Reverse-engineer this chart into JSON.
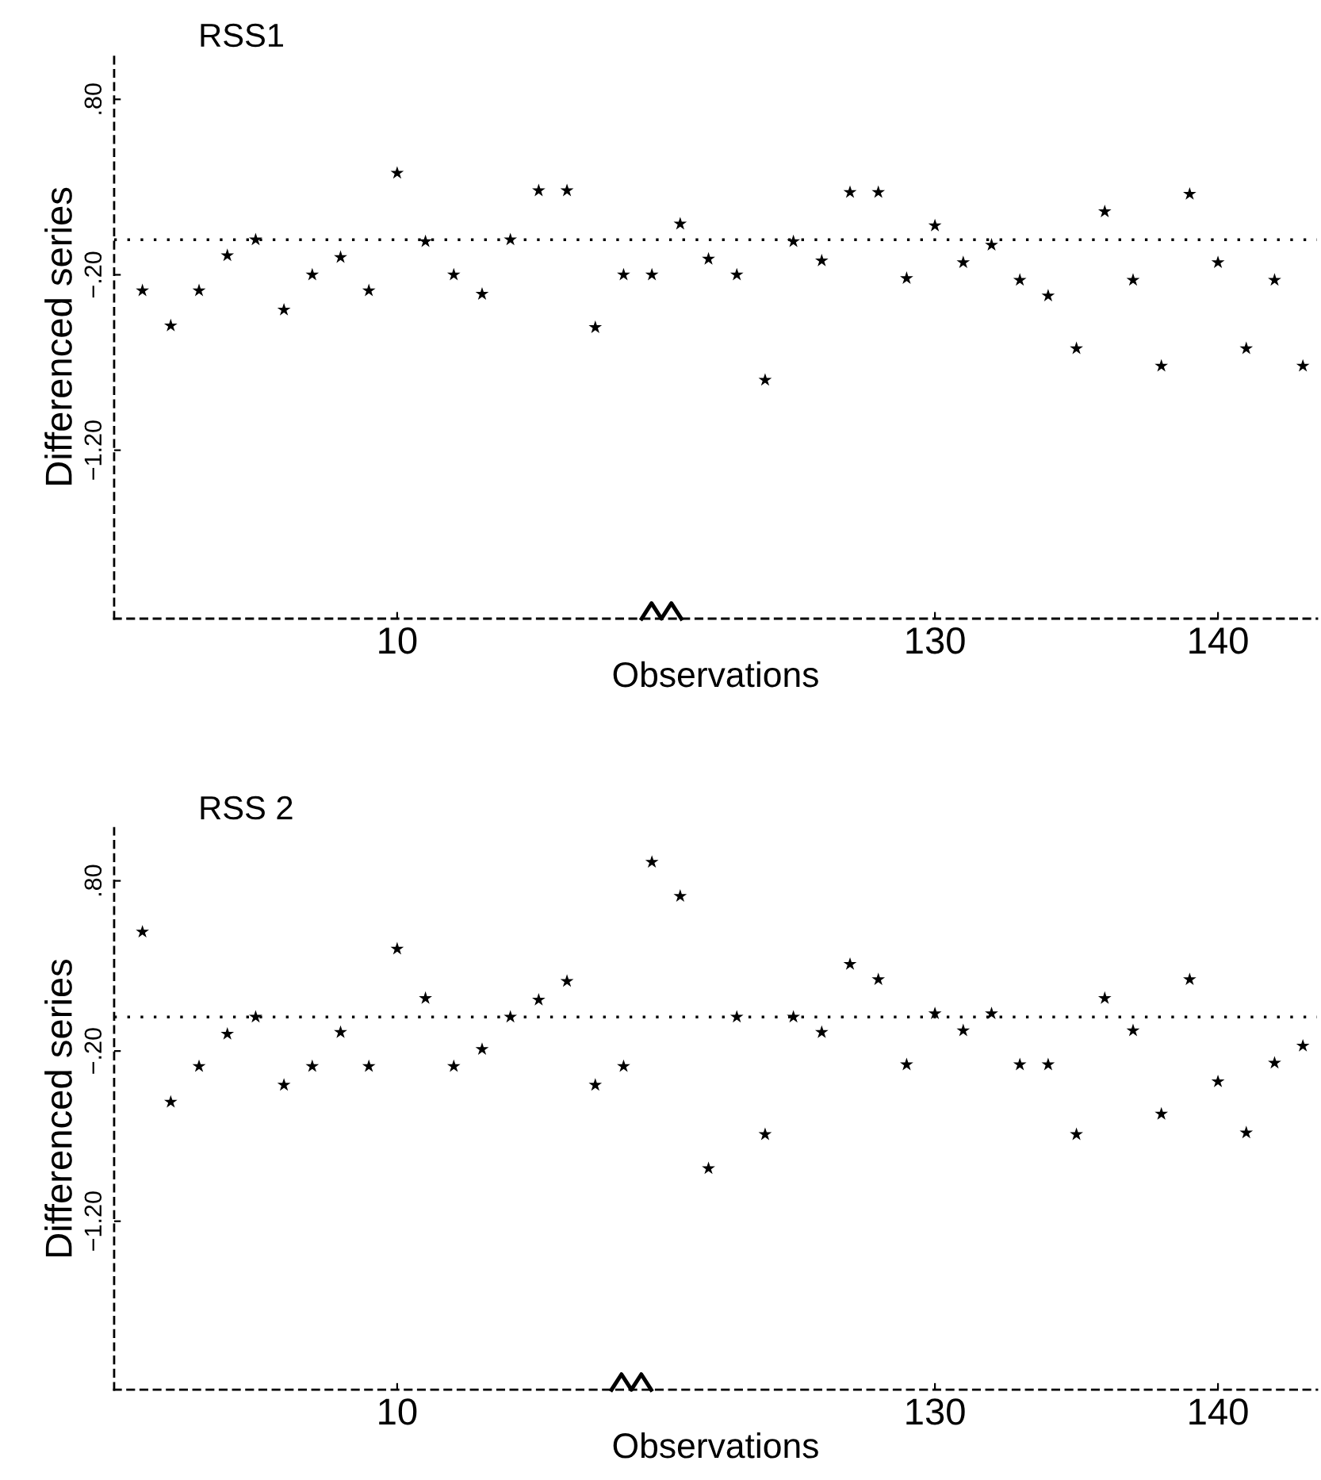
{
  "chart_data": [
    {
      "type": "scatter",
      "title": "RSS1",
      "xlabel": "Observations",
      "ylabel": "Differenced series",
      "categories": [
        null,
        null,
        null,
        null,
        null,
        null,
        null,
        null,
        null,
        "10",
        null,
        null,
        null,
        null,
        null,
        null,
        null,
        null,
        null,
        null,
        null,
        null,
        null,
        null,
        null,
        null,
        null,
        null,
        "130",
        null,
        null,
        null,
        null,
        null,
        null,
        null,
        null,
        null,
        "140",
        null,
        null,
        null
      ],
      "series": [
        {
          "color": "#000000",
          "values": [
            -0.29,
            -0.49,
            -0.29,
            -0.09,
            0.0,
            -0.4,
            -0.2,
            -0.1,
            -0.29,
            0.38,
            -0.01,
            -0.2,
            -0.31,
            0.0,
            0.28,
            0.28,
            -0.5,
            -0.2,
            -0.2,
            0.09,
            -0.11,
            -0.2,
            -0.8,
            -0.01,
            -0.12,
            0.27,
            0.27,
            -0.22,
            0.08,
            -0.13,
            -0.03,
            -0.23,
            -0.32,
            -0.62,
            0.16,
            -0.23,
            -0.72,
            0.26,
            -0.13,
            -0.62,
            -0.23,
            -0.72
          ]
        }
      ],
      "ylim": [
        -2.16,
        1.05
      ],
      "yticks": [
        {
          "value": 0.8,
          "label": ".80"
        },
        {
          "value": -0.2,
          "label": "−.20"
        },
        {
          "value": -1.2,
          "label": "−1.20"
        }
      ],
      "ref_lines": [
        {
          "axis": "y",
          "value": 0.0,
          "color": "#000000",
          "line_style": "dotted"
        }
      ],
      "marker": "star"
    },
    {
      "type": "scatter",
      "title": "RSS 2",
      "xlabel": "Observations",
      "ylabel": "Differenced series",
      "categories": [
        null,
        null,
        null,
        null,
        null,
        null,
        null,
        null,
        null,
        "10",
        null,
        null,
        null,
        null,
        null,
        null,
        null,
        null,
        null,
        null,
        null,
        null,
        null,
        null,
        null,
        null,
        null,
        null,
        "130",
        null,
        null,
        null,
        null,
        null,
        null,
        null,
        null,
        null,
        "140",
        null,
        null,
        null
      ],
      "series": [
        {
          "color": "#000000",
          "values": [
            0.5,
            -0.5,
            -0.29,
            -0.1,
            0.0,
            -0.4,
            -0.29,
            -0.09,
            -0.29,
            0.4,
            0.11,
            -0.29,
            -0.19,
            0.0,
            0.1,
            0.21,
            -0.4,
            -0.29,
            0.91,
            0.71,
            -0.89,
            0.0,
            -0.69,
            0.0,
            -0.09,
            0.31,
            0.22,
            -0.28,
            0.02,
            -0.08,
            0.02,
            -0.28,
            -0.28,
            -0.69,
            0.11,
            -0.08,
            -0.57,
            0.22,
            -0.38,
            -0.68,
            -0.27,
            -0.17
          ]
        }
      ],
      "ylim": [
        -2.19,
        1.11
      ],
      "yticks": [
        {
          "value": 0.8,
          "label": ".80"
        },
        {
          "value": -0.2,
          "label": "−.20"
        },
        {
          "value": -1.2,
          "label": "−1.20"
        }
      ],
      "ref_lines": [
        {
          "axis": "y",
          "value": 0.0,
          "color": "#000000",
          "line_style": "dotted"
        }
      ],
      "marker": "star"
    }
  ]
}
